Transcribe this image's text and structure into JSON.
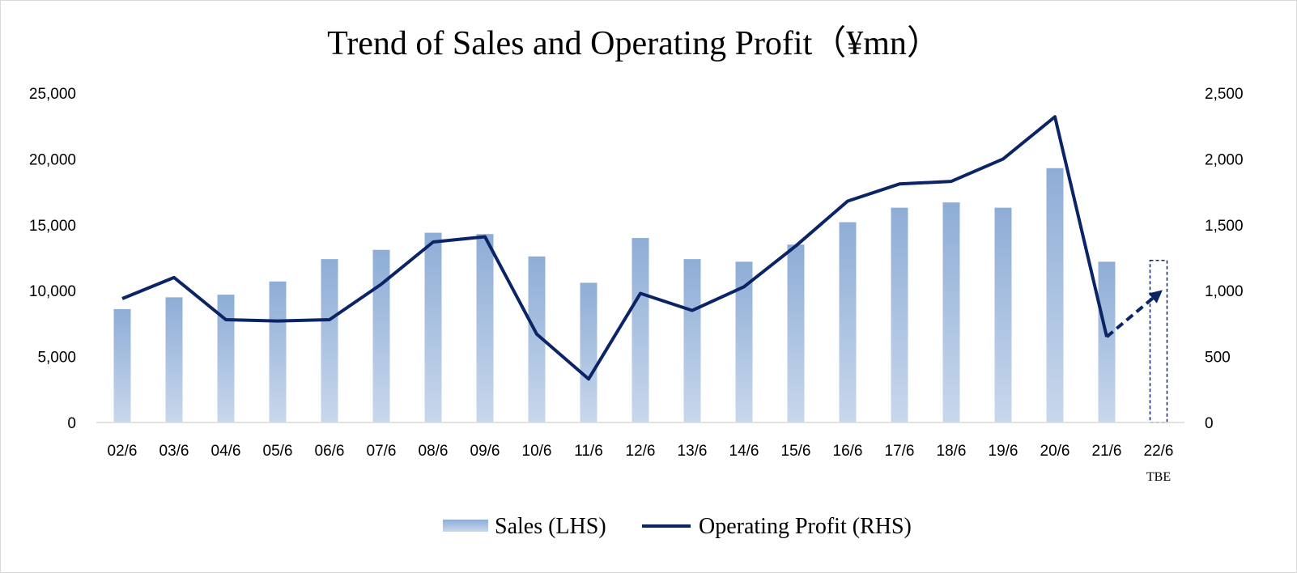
{
  "colors": {
    "bar_top": "#8eadd6",
    "bar_bottom": "#c8d8ec",
    "line": "#0b2466",
    "axis": "#d9d9d9"
  },
  "chart_data": {
    "type": "bar",
    "title": "Trend of Sales and Operating Profit（¥mn）",
    "categories": [
      "02/6",
      "03/6",
      "04/6",
      "05/6",
      "06/6",
      "07/6",
      "08/6",
      "09/6",
      "10/6",
      "11/6",
      "12/6",
      "13/6",
      "14/6",
      "15/6",
      "16/6",
      "17/6",
      "18/6",
      "19/6",
      "20/6",
      "21/6",
      "22/6"
    ],
    "category_sublabels": {
      "22/6": "TBE"
    },
    "y_left": {
      "min": 0,
      "max": 25000,
      "ticks": [
        "0",
        "5,000",
        "10,000",
        "15,000",
        "20,000",
        "25,000"
      ]
    },
    "y_right": {
      "min": 0,
      "max": 2500,
      "ticks": [
        "0",
        "500",
        "1,000",
        "1,500",
        "2,000",
        "2,500"
      ]
    },
    "series": [
      {
        "name": "Sales (LHS)",
        "type": "bar",
        "axis": "left",
        "values": [
          8600,
          9500,
          9700,
          10700,
          12400,
          13100,
          14400,
          14300,
          12600,
          10600,
          14000,
          12400,
          12200,
          13500,
          15200,
          16300,
          16700,
          16300,
          19300,
          12200,
          12300
        ],
        "forecast_from_index": 20
      },
      {
        "name": "Operating Profit (RHS)",
        "type": "line",
        "axis": "right",
        "values": [
          940,
          1100,
          780,
          770,
          780,
          1050,
          1370,
          1410,
          670,
          330,
          980,
          850,
          1030,
          1340,
          1680,
          1810,
          1830,
          2000,
          2320,
          650,
          980
        ],
        "forecast_from_index": 20
      }
    ],
    "legend": {
      "position": "bottom",
      "items": [
        "Sales (LHS)",
        "Operating Profit (RHS)"
      ]
    },
    "grid": false
  }
}
